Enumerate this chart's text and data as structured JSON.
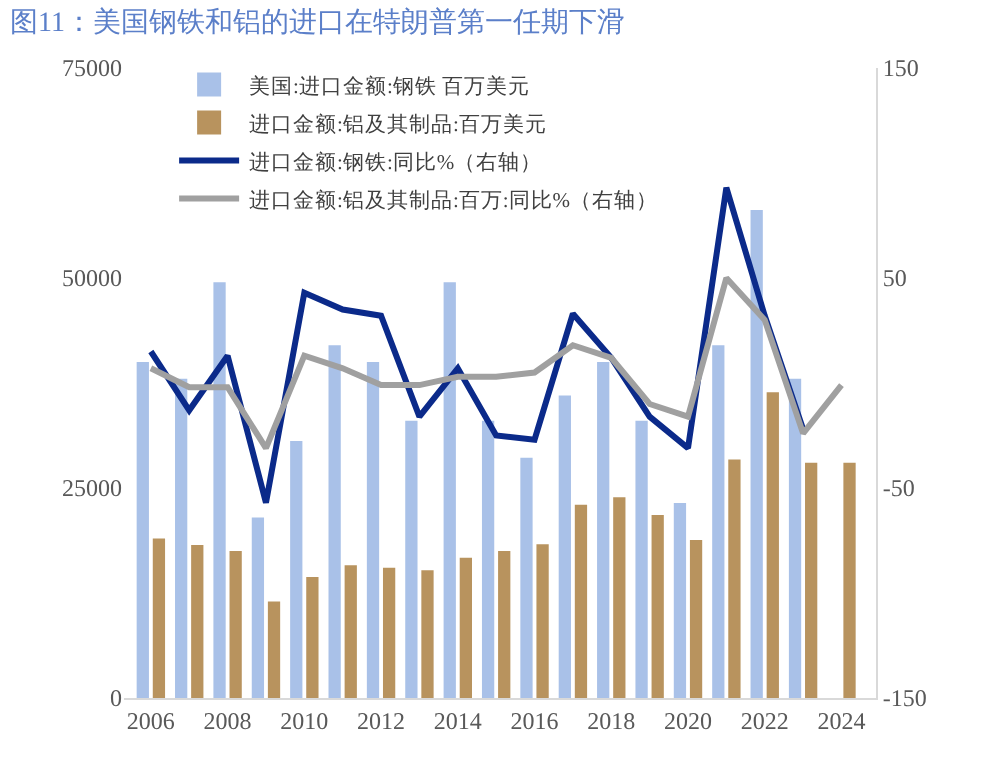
{
  "chart_data": {
    "type": "bar",
    "title": "图11：美国钢铁和铝的进口在特朗普第一任期下滑",
    "x": [
      2006,
      2007,
      2008,
      2009,
      2010,
      2011,
      2012,
      2013,
      2014,
      2015,
      2016,
      2017,
      2018,
      2019,
      2020,
      2021,
      2022,
      2023,
      2024
    ],
    "series": [
      {
        "name": "美国:进口金额:钢铁 百万美元",
        "color": "#a9c1e8",
        "values": [
          40000,
          38000,
          49500,
          21500,
          30600,
          42000,
          40000,
          33000,
          49500,
          33000,
          28600,
          36000,
          40000,
          33000,
          23200,
          42000,
          58100,
          38000,
          null
        ]
      },
      {
        "name": "进口金额:铝及其制品:百万美元",
        "color": "#b8935e",
        "values": [
          19000,
          18200,
          17500,
          11500,
          14400,
          15800,
          15500,
          15200,
          16700,
          17500,
          18300,
          23000,
          23900,
          21800,
          18800,
          28400,
          36400,
          28000,
          28000
        ]
      },
      {
        "name": "进口金额:钢铁:同比%（右轴）",
        "type": "line",
        "axis": "y2",
        "color": "#0b2a8a",
        "values": [
          15,
          -13,
          13,
          -57,
          43,
          35,
          32,
          -16,
          7,
          -25,
          -27,
          33,
          12,
          -16,
          -31,
          93,
          32,
          -22,
          null
        ]
      },
      {
        "name": "进口金额:铝及其制品:百万:同比%（右轴）",
        "type": "line",
        "axis": "y2",
        "color": "#a0a0a0",
        "values": [
          7,
          -2,
          -2,
          -31,
          13,
          7,
          -1,
          -1,
          3,
          3,
          5,
          18,
          12,
          -10,
          -16,
          50,
          30,
          -24,
          -1
        ]
      }
    ],
    "xlim": [
      2005.3,
      2024.9
    ],
    "xticks": [
      2006,
      2008,
      2010,
      2012,
      2014,
      2016,
      2018,
      2020,
      2022,
      2024
    ],
    "ylim": [
      0,
      75000
    ],
    "yticks": [
      0,
      25000,
      50000,
      75000
    ],
    "y2lim": [
      -150,
      150
    ],
    "y2ticks": [
      -150,
      -50,
      50,
      150
    ],
    "legend": "top",
    "line_style": "solid",
    "marker": "none"
  }
}
